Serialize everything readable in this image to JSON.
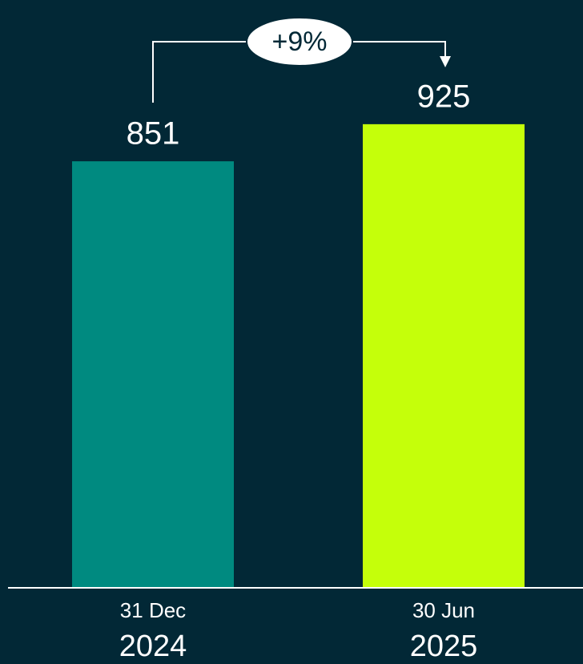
{
  "chart_data": {
    "type": "bar",
    "categories": [
      [
        "31 Dec",
        "2024"
      ],
      [
        "30 Jun",
        "2025"
      ]
    ],
    "values": [
      851,
      925
    ],
    "colors": [
      "#008a80",
      "#c5ff0a"
    ],
    "annotation": "+9%"
  }
}
